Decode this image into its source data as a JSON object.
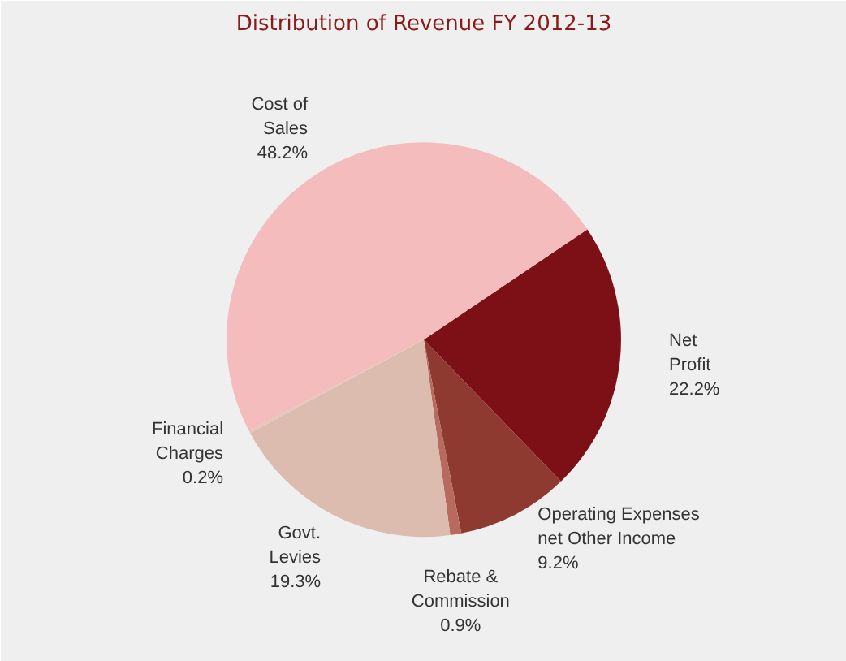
{
  "chart_data": {
    "type": "pie",
    "title": "Distribution of Revenue FY 2012-13",
    "categories": [
      "Net\nProfit",
      "Operating Expenses\nnet Other Income",
      "Rebate &\nCommission",
      "Govt.\nLevies",
      "Financial\nCharges",
      "Cost of\nSales"
    ],
    "values": [
      22.2,
      9.2,
      0.9,
      19.3,
      0.2,
      48.2
    ],
    "value_labels": [
      "22.2%",
      "9.2%",
      "0.9%",
      "19.3%",
      "0.2%",
      "48.2%"
    ],
    "colors": [
      "#7d1016",
      "#8e3a30",
      "#b86a5e",
      "#dcbcae",
      "#e6c6bc",
      "#f4bcbc"
    ]
  }
}
